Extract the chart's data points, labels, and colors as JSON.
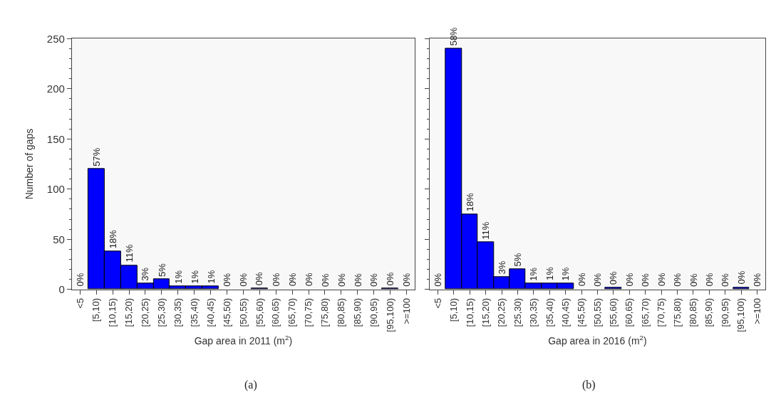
{
  "chart_data": [
    {
      "type": "bar",
      "xlabel": "Gap area in 2011 (m$^{2}$)",
      "ylabel": "Number of gaps",
      "categories": [
        "<5",
        "[5,10)",
        "[10,15)",
        "[15,20)",
        "[20,25)",
        "[25,30)",
        "[30,35)",
        "[35,40)",
        "[40,45)",
        "[45,50)",
        "[50,55)",
        "[55,60)",
        "[60,65)",
        "[65,70)",
        "[70,75)",
        "[75,80)",
        "[80,85)",
        "[85,90)",
        "[90,95)",
        "[95,100)",
        ">=100"
      ],
      "values": [
        0,
        120,
        38,
        24,
        6,
        10,
        3,
        3,
        3,
        0,
        0,
        1,
        0,
        0,
        0,
        0,
        0,
        0,
        0,
        1,
        0
      ],
      "annotations": [
        {
          "text": "0%",
          "x": "<5",
          "y": 0
        },
        {
          "text": "57%",
          "x": "[5,10)",
          "y": 120
        },
        {
          "text": "18%",
          "x": "[10,15)",
          "y": 38
        },
        {
          "text": "11%",
          "x": "[15,20)",
          "y": 24
        },
        {
          "text": "3%",
          "x": "[20,25)",
          "y": 6
        },
        {
          "text": "5%",
          "x": "[25,30)",
          "y": 10
        },
        {
          "text": "1%",
          "x": "[30,35)",
          "y": 3
        },
        {
          "text": "1%",
          "x": "[35,40)",
          "y": 3
        },
        {
          "text": "1%",
          "x": "[40,45)",
          "y": 3
        },
        {
          "text": "0%",
          "x": "[45,50)",
          "y": 0
        },
        {
          "text": "0%",
          "x": "[50,55)",
          "y": 0
        },
        {
          "text": "0%",
          "x": "[55,60)",
          "y": 1
        },
        {
          "text": "0%",
          "x": "[60,65)",
          "y": 0
        },
        {
          "text": "0%",
          "x": "[65,70)",
          "y": 0
        },
        {
          "text": "0%",
          "x": "[70,75)",
          "y": 0
        },
        {
          "text": "0%",
          "x": "[75,80)",
          "y": 0
        },
        {
          "text": "0%",
          "x": "[80,85)",
          "y": 0
        },
        {
          "text": "0%",
          "x": "[85,90)",
          "y": 0
        },
        {
          "text": "0%",
          "x": "[90,95)",
          "y": 0
        },
        {
          "text": "0%",
          "x": "[95,100)",
          "y": 1
        },
        {
          "text": "0%",
          "x": ">=100",
          "y": 0
        },
        "(a)"
      ],
      "color": "#0000ff",
      "ylim": [
        0,
        250
      ],
      "yticks": [
        0,
        50,
        100,
        150,
        200,
        250
      ],
      "grid": false
    },
    {
      "type": "bar",
      "xlabel": "Gap area in 2016 (m$^{2}$)",
      "categories": [
        "<5",
        "[5,10)",
        "[10,15)",
        "[15,20)",
        "[20,25)",
        "[25,30)",
        "[30,35)",
        "[35,40)",
        "[40,45)",
        "[45,50)",
        "[50,55)",
        "[55,60)",
        "[60,65)",
        "[65,70)",
        "[70,75)",
        "[75,80)",
        "[80,85)",
        "[85,90)",
        "[90,95)",
        "[95,100)",
        ">=100"
      ],
      "values": [
        0,
        240,
        75,
        47,
        12,
        20,
        6,
        6,
        6,
        0,
        0,
        2,
        0,
        0,
        0,
        0,
        0,
        0,
        0,
        2,
        0
      ],
      "annotations": [
        {
          "text": "0%",
          "x": "<5",
          "y": 0
        },
        {
          "text": "58%",
          "x": "[5,10)",
          "y": 240
        },
        {
          "text": "18%",
          "x": "[10,15)",
          "y": 75
        },
        {
          "text": "11%",
          "x": "[15,20)",
          "y": 47
        },
        {
          "text": "3%",
          "x": "[20,25)",
          "y": 12
        },
        {
          "text": "5%",
          "x": "[25,30)",
          "y": 20
        },
        {
          "text": "1%",
          "x": "[30,35)",
          "y": 6
        },
        {
          "text": "1%",
          "x": "[35,40)",
          "y": 6
        },
        {
          "text": "1%",
          "x": "[40,45)",
          "y": 6
        },
        {
          "text": "0%",
          "x": "[45,50)",
          "y": 0
        },
        {
          "text": "0%",
          "x": "[50,55)",
          "y": 0
        },
        {
          "text": "0%",
          "x": "[55,60)",
          "y": 2
        },
        {
          "text": "0%",
          "x": "[60,65)",
          "y": 0
        },
        {
          "text": "0%",
          "x": "[65,70)",
          "y": 0
        },
        {
          "text": "0%",
          "x": "[70,75)",
          "y": 0
        },
        {
          "text": "0%",
          "x": "[75,80)",
          "y": 0
        },
        {
          "text": "0%",
          "x": "[80,85)",
          "y": 0
        },
        {
          "text": "0%",
          "x": "[85,90)",
          "y": 0
        },
        {
          "text": "0%",
          "x": "[90,95)",
          "y": 0
        },
        {
          "text": "0%",
          "x": "[95,100)",
          "y": 2
        },
        {
          "text": "0%",
          "x": ">=100",
          "y": 0
        },
        "(b)"
      ],
      "color": "#0000ff",
      "ylim": [
        0,
        250
      ],
      "yticks": [
        0,
        50,
        100,
        150,
        200,
        250
      ],
      "grid": false,
      "tick_labels": "x"
    }
  ]
}
